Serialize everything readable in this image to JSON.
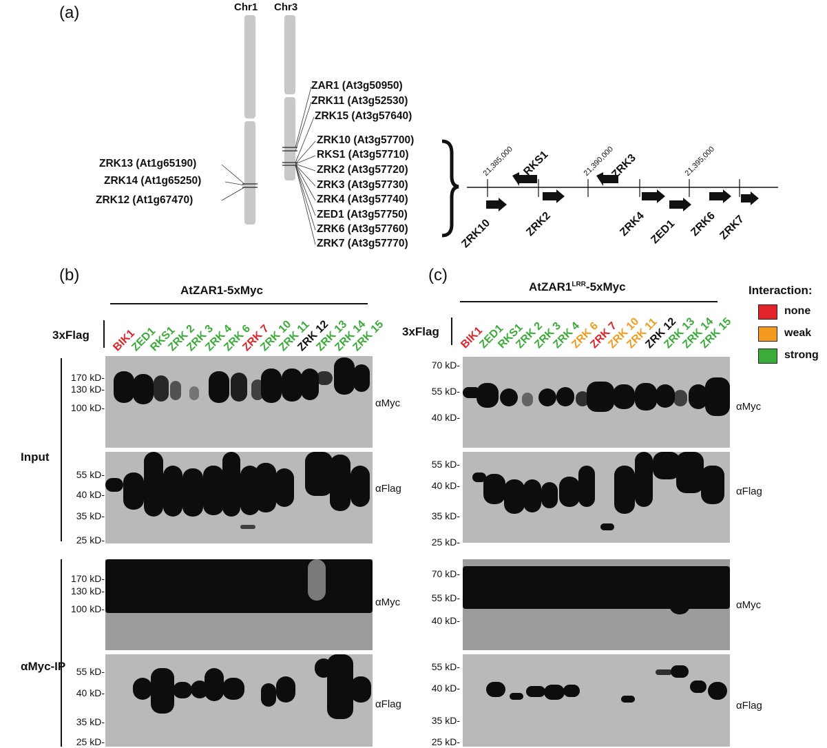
{
  "panel_a": {
    "label": "(a)",
    "chr1": "Chr1",
    "chr3": "Chr3",
    "chr1_genes": [
      "ZRK13 (At1g65190)",
      "ZRK14 (At1g65250)",
      "ZRK12 (At1g67470)"
    ],
    "chr3_genes_top": [
      "ZAR1 (At3g50950)",
      "ZRK11 (At3g52530)",
      "ZRK15 (At3g57640)"
    ],
    "chr3_genes_cluster": [
      "ZRK10 (At3g57700)",
      "RKS1 (At3g57710)",
      "ZRK2 (At3g57720)",
      "ZRK3 (At3g57730)",
      "ZRK4 (At3g57740)",
      "ZED1 (At3g57750)",
      "ZRK6 (At3g57760)",
      "ZRK7 (At3g57770)"
    ],
    "coordinates": [
      "21,385,000",
      "21,390,000",
      "21,395,000"
    ],
    "locus_above": [
      "RKS1",
      "ZRK3"
    ],
    "locus_below": [
      "ZRK10",
      "ZRK2",
      "ZRK4",
      "ZED1",
      "ZRK6",
      "ZRK7"
    ]
  },
  "panel_b": {
    "label": "(b)",
    "title": "AtZAR1-5xMyc",
    "flag_label": "3xFlag",
    "lanes": [
      {
        "name": "BIK1",
        "color": "#e0242a"
      },
      {
        "name": "ZED1",
        "color": "#3bab3a"
      },
      {
        "name": "RKS1",
        "color": "#3bab3a"
      },
      {
        "name": "ZRK 2",
        "color": "#3bab3a"
      },
      {
        "name": "ZRK 3",
        "color": "#3bab3a"
      },
      {
        "name": "ZRK 4",
        "color": "#3bab3a"
      },
      {
        "name": "ZRK 6",
        "color": "#3bab3a"
      },
      {
        "name": "ZRK 7",
        "color": "#e0242a"
      },
      {
        "name": "ZRK 10",
        "color": "#3bab3a"
      },
      {
        "name": "ZRK 11",
        "color": "#3bab3a"
      },
      {
        "name": "ZRK 12",
        "color": "#111111"
      },
      {
        "name": "ZRK 13",
        "color": "#3bab3a"
      },
      {
        "name": "ZRK 14",
        "color": "#3bab3a"
      },
      {
        "name": "ZRK 15",
        "color": "#3bab3a"
      }
    ],
    "input_label": "Input",
    "ip_label": "αMyc-IP",
    "myc_markers": [
      "170 kD-",
      "130 kD-",
      "100 kD-"
    ],
    "flag_markers": [
      "55 kD-",
      "40 kD-",
      "35 kD-",
      "25 kD-"
    ],
    "ab_myc": "αMyc",
    "ab_flag": "αFlag"
  },
  "panel_c": {
    "label": "(c)",
    "title_main": "AtZAR1",
    "title_sup": "LRR",
    "title_rest": "-5xMyc",
    "flag_label": "3xFlag",
    "lanes": [
      {
        "name": "BIK1",
        "color": "#e0242a"
      },
      {
        "name": "ZED1",
        "color": "#3bab3a"
      },
      {
        "name": "RKS1",
        "color": "#3bab3a"
      },
      {
        "name": "ZRK 2",
        "color": "#3bab3a"
      },
      {
        "name": "ZRK 3",
        "color": "#3bab3a"
      },
      {
        "name": "ZRK 4",
        "color": "#3bab3a"
      },
      {
        "name": "ZRK 6",
        "color": "#f39a1f"
      },
      {
        "name": "ZRK 7",
        "color": "#e0242a"
      },
      {
        "name": "ZRK 10",
        "color": "#f39a1f"
      },
      {
        "name": "ZRK 11",
        "color": "#f39a1f"
      },
      {
        "name": "ZRK 12",
        "color": "#111111"
      },
      {
        "name": "ZRK 13",
        "color": "#3bab3a"
      },
      {
        "name": "ZRK 14",
        "color": "#3bab3a"
      },
      {
        "name": "ZRK 15",
        "color": "#3bab3a"
      }
    ],
    "myc_markers": [
      "70 kD-",
      "55 kD-",
      "40 kD-"
    ],
    "flag_markers": [
      "55 kD-",
      "40 kD-",
      "35 kD-",
      "25 kD-"
    ],
    "ab_myc": "αMyc",
    "ab_flag": "αFlag"
  },
  "legend": {
    "title": "Interaction:",
    "items": [
      {
        "label": "none",
        "color": "#e0242a"
      },
      {
        "label": "weak",
        "color": "#f39a1f"
      },
      {
        "label": "strong",
        "color": "#3bab3a"
      }
    ]
  }
}
